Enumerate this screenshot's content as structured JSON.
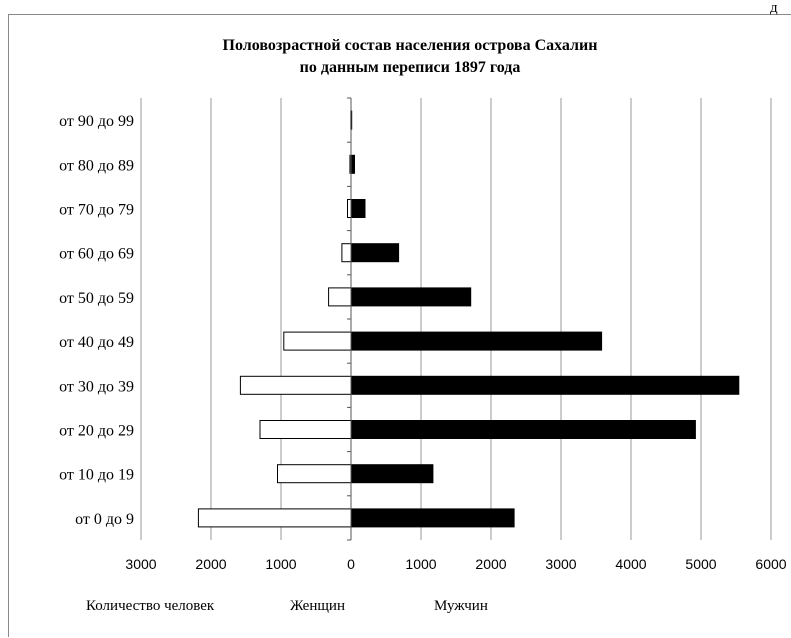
{
  "page_corner": "д",
  "chart_data": {
    "type": "bar",
    "orientation": "horizontal",
    "title": "Половозрастной состав населения острова Сахалин",
    "subtitle": "по данным переписи 1897 года",
    "categories": [
      "от 0 до 9",
      "от 10 до 19",
      "от 20 до 29",
      "от 30 до 39",
      "от 40 до 49",
      "от 50 до 59",
      "от 60 до 69",
      "от 70 до 79",
      "от 80 до 89",
      "от 90 до 99"
    ],
    "series": [
      {
        "name": "Женщин",
        "color": "#ffffff",
        "values": [
          2180,
          1050,
          1300,
          1580,
          960,
          320,
          130,
          50,
          15,
          2
        ]
      },
      {
        "name": "Мужчин",
        "color": "#000000",
        "values": [
          2330,
          1170,
          4920,
          5540,
          3580,
          1710,
          680,
          200,
          50,
          10
        ]
      }
    ],
    "xlim": [
      -3000,
      6000
    ],
    "xticks": [
      -3000,
      -2000,
      -1000,
      0,
      1000,
      2000,
      3000,
      4000,
      5000,
      6000
    ],
    "xtick_labels": [
      "3000",
      "2000",
      "1000",
      "0",
      "1000",
      "2000",
      "3000",
      "4000",
      "5000",
      "6000"
    ],
    "xlabel": "Количество  человек",
    "legend": [
      "Женщин",
      "Мужчин"
    ],
    "grid": true
  }
}
